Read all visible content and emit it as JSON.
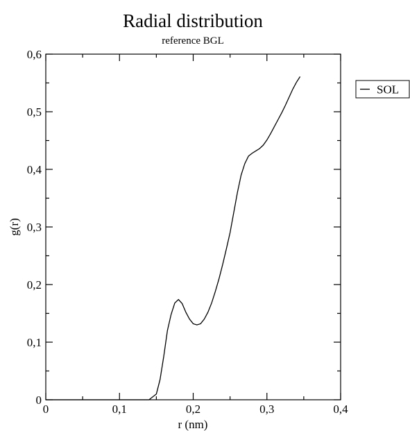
{
  "chart_data": {
    "type": "line",
    "title": "Radial distribution",
    "subtitle": "reference BGL",
    "x_label": "r (nm)",
    "y_label": "g(r)",
    "x": [
      0,
      0.14,
      0.145,
      0.15,
      0.155,
      0.16,
      0.165,
      0.17,
      0.175,
      0.18,
      0.185,
      0.19,
      0.195,
      0.2,
      0.205,
      0.21,
      0.215,
      0.22,
      0.225,
      0.23,
      0.235,
      0.24,
      0.245,
      0.25,
      0.255,
      0.26,
      0.265,
      0.27,
      0.275,
      0.28,
      0.285,
      0.29,
      0.295,
      0.3,
      0.305,
      0.31,
      0.315,
      0.32,
      0.325,
      0.33,
      0.335,
      0.34,
      0.345
    ],
    "series": [
      {
        "name": "SOL",
        "color": "#000000",
        "values": [
          0,
          0,
          0.005,
          0.01,
          0.035,
          0.075,
          0.12,
          0.148,
          0.168,
          0.174,
          0.167,
          0.152,
          0.14,
          0.132,
          0.13,
          0.132,
          0.14,
          0.152,
          0.168,
          0.188,
          0.21,
          0.235,
          0.262,
          0.29,
          0.325,
          0.36,
          0.39,
          0.41,
          0.423,
          0.428,
          0.432,
          0.436,
          0.442,
          0.451,
          0.462,
          0.474,
          0.486,
          0.498,
          0.511,
          0.525,
          0.539,
          0.551,
          0.561
        ]
      }
    ],
    "xlim": [
      0,
      0.4
    ],
    "ylim": [
      0,
      0.6
    ],
    "xticks": [
      {
        "value": 0,
        "label": "0"
      },
      {
        "value": 0.1,
        "label": "0,1"
      },
      {
        "value": 0.2,
        "label": "0,2"
      },
      {
        "value": 0.3,
        "label": "0,3"
      },
      {
        "value": 0.4,
        "label": "0,4"
      }
    ],
    "yticks": [
      {
        "value": 0,
        "label": "0"
      },
      {
        "value": 0.1,
        "label": "0,1"
      },
      {
        "value": 0.2,
        "label": "0,2"
      },
      {
        "value": 0.3,
        "label": "0,3"
      },
      {
        "value": 0.4,
        "label": "0,4"
      },
      {
        "value": 0.5,
        "label": "0,5"
      },
      {
        "value": 0.6,
        "label": "0,6"
      }
    ],
    "xminorticks": [
      0.05,
      0.15,
      0.25,
      0.35
    ],
    "yminorticks": [
      0.05,
      0.15,
      0.25,
      0.35,
      0.45,
      0.55
    ],
    "grid": false,
    "legend": "right"
  }
}
